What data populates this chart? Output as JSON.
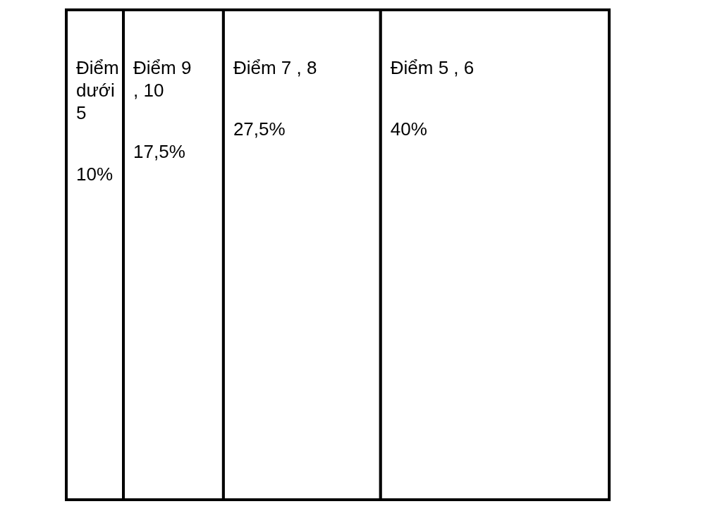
{
  "chart_data": {
    "type": "bar",
    "orientation": "horizontal",
    "stacked": true,
    "categories": [
      null
    ],
    "tick_labels": false,
    "legend": false,
    "series": [
      {
        "name": "Điểm dưới 5",
        "color": "#ffffff",
        "values": [
          10
        ],
        "value_labels": [
          "10%"
        ]
      },
      {
        "name": "Điểm 9 , 10",
        "color": "#ffffff",
        "values": [
          17.5
        ],
        "value_labels": [
          "17,5%"
        ]
      },
      {
        "name": "Điểm 7 , 8",
        "color": "#ffffff",
        "values": [
          27.5
        ],
        "value_labels": [
          "27,5%"
        ]
      },
      {
        "name": "Điểm 5 , 6",
        "color": "#ffffff",
        "values": [
          40
        ],
        "value_labels": [
          "40%"
        ]
      }
    ]
  }
}
